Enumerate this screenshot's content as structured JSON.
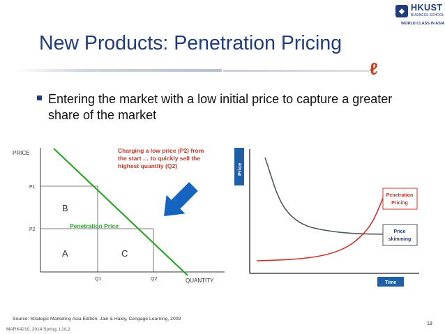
{
  "slide": {
    "title": "New Products: Penetration Pricing",
    "bullet": "Entering the market with a low initial price to capture a greater share of the market"
  },
  "logo": {
    "name": "HKUST",
    "sub": "BUSINESS SCHOOL",
    "tag": "WORLD CLASS IN ASIA"
  },
  "left_chart": {
    "y_axis_label": "PRICE",
    "x_axis_label": "QUANTITY",
    "y_ticks": [
      "P1",
      "P2"
    ],
    "x_ticks": [
      "Q1",
      "Q2"
    ],
    "region_labels": [
      "B",
      "A",
      "C"
    ],
    "annotation": "Charging a low price (P2) from the start … to quickly sell the highest quantity (Q2)",
    "annotation_lines": [
      "Charging a low price (P2) from",
      "the start … to quickly sell the",
      "highest quantity (Q2)"
    ],
    "line_label": "Penetration Price"
  },
  "right_chart": {
    "y_axis_label": "Price",
    "x_axis_label": "Time",
    "series": [
      "Penetration Pricing",
      "Price skimming"
    ],
    "penetration_lines": [
      "Penetration",
      "Pricing"
    ],
    "skimming_lines": [
      "Price",
      "skimming"
    ]
  },
  "colors": {
    "title": "#1f3d7a",
    "demand_line": "#2aa52a",
    "arrow": "#1565c0",
    "annotation_text": "#c0392b",
    "penetration_curve": "#c8352b",
    "skimming_curve": "#4d5660",
    "axis_box": "#1f5fa8"
  },
  "footer": {
    "source": "Source: Strategic Marketing Asia Edition, Jain & Haley, Cengage Learning, 2009",
    "course": "MARK4210, 2014 Spring, L1/L2",
    "page": "18"
  }
}
